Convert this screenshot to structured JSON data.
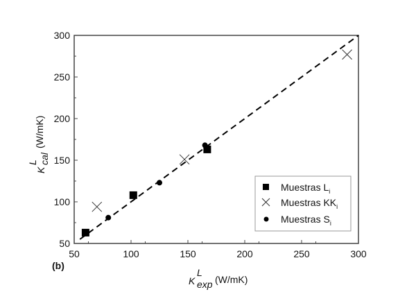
{
  "chart_data": {
    "type": "scatter",
    "panel_label": "(b)",
    "xlabel": {
      "symbol": "K",
      "sup": "L",
      "sub": "exp",
      "unit": "(W/mK)"
    },
    "ylabel": {
      "symbol": "K",
      "sup": "L",
      "sub": "cal",
      "unit": "(W/mK)"
    },
    "xlim": [
      50,
      300
    ],
    "ylim": [
      50,
      300
    ],
    "xticks": [
      "50",
      "100",
      "150",
      "200",
      "250",
      "300"
    ],
    "yticks": [
      "50",
      "100",
      "150",
      "200",
      "250",
      "300"
    ],
    "grid": false,
    "legend_position": "bottom-right",
    "reference_line": {
      "type": "y=x",
      "style": "dashed",
      "x_range": [
        55,
        300
      ]
    },
    "series": [
      {
        "name": "Muestras L",
        "sub": "i",
        "marker": "square",
        "points": [
          [
            60,
            63
          ],
          [
            102,
            108
          ],
          [
            167,
            163
          ]
        ]
      },
      {
        "name": "Muestras KK",
        "sub": "i",
        "marker": "cross",
        "points": [
          [
            70,
            94
          ],
          [
            147,
            151
          ],
          [
            290,
            277
          ]
        ]
      },
      {
        "name": "Muestras S",
        "sub": "i",
        "marker": "circle",
        "points": [
          [
            80,
            81
          ],
          [
            125,
            123
          ],
          [
            165,
            168
          ]
        ]
      }
    ]
  }
}
